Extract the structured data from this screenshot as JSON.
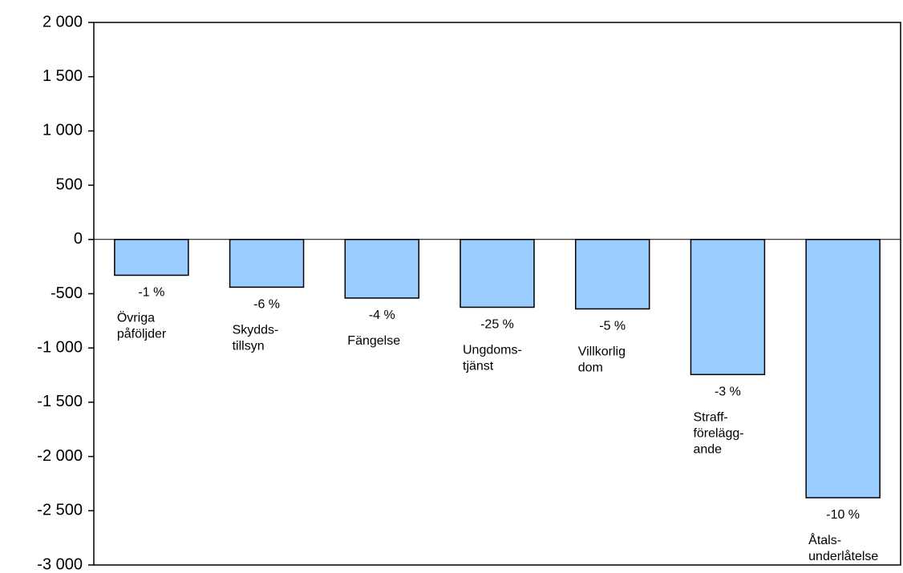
{
  "chart_data": {
    "type": "bar",
    "categories": [
      "Övriga\npåföljder",
      "Skydds-\ntillsyn",
      "Fängelse",
      "Ungdoms-\ntjänst",
      "Villkorlig\ndom",
      "Straff-\nförelägg-\nande",
      "Åtals-\nunderlåtelse"
    ],
    "values": [
      -330,
      -440,
      -540,
      -625,
      -640,
      -1245,
      -2380
    ],
    "annotations": [
      "-1 %",
      "-6 %",
      "-4 %",
      "-25 %",
      "-5 %",
      "-3 %",
      "-10 %"
    ],
    "color": "#99ccff",
    "ylim": [
      -3000,
      2000
    ],
    "yticks": [
      {
        "value": -3000,
        "label": "-3 000"
      },
      {
        "value": -2500,
        "label": "-2 500"
      },
      {
        "value": -2000,
        "label": "-2 000"
      },
      {
        "value": -1500,
        "label": "-1 500"
      },
      {
        "value": -1000,
        "label": "-1 000"
      },
      -500,
      0,
      500,
      {
        "value": 1000,
        "label": "1 000"
      },
      {
        "value": 1500,
        "label": "1 500"
      },
      {
        "value": 2000,
        "label": "2 000"
      }
    ],
    "grid": false
  }
}
